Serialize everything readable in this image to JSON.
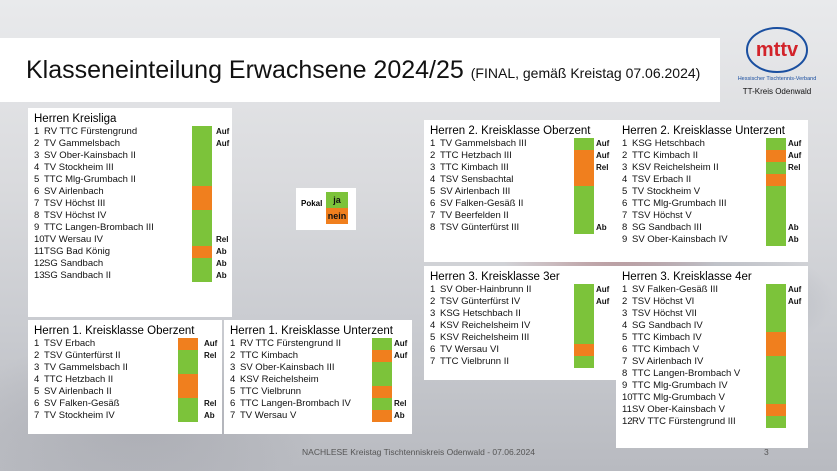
{
  "colors": {
    "green": "#7cc33a",
    "orange": "#f07f1e"
  },
  "title": {
    "main": "Klasseneinteilung Erwachsene 2024/25",
    "sub": "(FINAL, gemäß Kreistag 07.06.2024)"
  },
  "logo": {
    "mark": "mttv",
    "line1": "Hessischer Tischtennis-Verband",
    "line2": "TT-Kreis Odenwald"
  },
  "pokal": {
    "label": "Pokal",
    "ja": "ja",
    "nein": "nein"
  },
  "footer": {
    "text": "NACHLESE Kreistag Tischtenniskreis Odenwald - 07.06.2024",
    "page": "3"
  },
  "tables": [
    {
      "id": "kreisliga",
      "title": "Herren Kreisliga",
      "rows": [
        {
          "n": "1",
          "team": "RV TTC Fürstengrund",
          "color": "green",
          "tag": "Auf"
        },
        {
          "n": "2",
          "team": "TV Gammelsbach",
          "color": "green",
          "tag": "Auf"
        },
        {
          "n": "3",
          "team": "SV Ober-Kainsbach II",
          "color": "green",
          "tag": ""
        },
        {
          "n": "4",
          "team": "TV Stockheim III",
          "color": "green",
          "tag": ""
        },
        {
          "n": "5",
          "team": "TTC Mlg-Grumbach II",
          "color": "green",
          "tag": ""
        },
        {
          "n": "6",
          "team": "SV Airlenbach",
          "color": "orange",
          "tag": ""
        },
        {
          "n": "7",
          "team": "TSV Höchst III",
          "color": "orange",
          "tag": ""
        },
        {
          "n": "8",
          "team": "TSV Höchst IV",
          "color": "green",
          "tag": ""
        },
        {
          "n": "9",
          "team": "TTC Langen-Brombach III",
          "color": "green",
          "tag": ""
        },
        {
          "n": "10",
          "team": "TV Wersau IV",
          "color": "green",
          "tag": "Rel"
        },
        {
          "n": "11",
          "team": "TSG Bad König",
          "color": "orange",
          "tag": "Ab"
        },
        {
          "n": "12",
          "team": "SG Sandbach",
          "color": "green",
          "tag": "Ab"
        },
        {
          "n": "13",
          "team": "SG Sandbach II",
          "color": "green",
          "tag": "Ab"
        }
      ]
    },
    {
      "id": "1kk-oberzent",
      "title": "Herren 1. Kreisklasse Oberzent",
      "rows": [
        {
          "n": "1",
          "team": "TSV Erbach",
          "color": "orange",
          "tag": "Auf"
        },
        {
          "n": "2",
          "team": "TSV Günterfürst II",
          "color": "green",
          "tag": "Rel"
        },
        {
          "n": "3",
          "team": "TV Gammelsbach II",
          "color": "green",
          "tag": ""
        },
        {
          "n": "4",
          "team": "TTC Hetzbach II",
          "color": "orange",
          "tag": ""
        },
        {
          "n": "5",
          "team": "SV Airlenbach II",
          "color": "orange",
          "tag": ""
        },
        {
          "n": "6",
          "team": "SV Falken-Gesäß",
          "color": "green",
          "tag": "Rel"
        },
        {
          "n": "7",
          "team": "TV Stockheim IV",
          "color": "green",
          "tag": "Ab"
        }
      ]
    },
    {
      "id": "1kk-unterzent",
      "title": "Herren 1. Kreisklasse Unterzent",
      "rows": [
        {
          "n": "1",
          "team": "RV TTC Fürstengrund II",
          "color": "green",
          "tag": "Auf"
        },
        {
          "n": "2",
          "team": "TTC Kimbach",
          "color": "orange",
          "tag": "Auf"
        },
        {
          "n": "3",
          "team": "SV Ober-Kainsbach III",
          "color": "green",
          "tag": ""
        },
        {
          "n": "4",
          "team": "KSV Reichelsheim",
          "color": "green",
          "tag": ""
        },
        {
          "n": "5",
          "team": "TTC Vielbrunn",
          "color": "orange",
          "tag": ""
        },
        {
          "n": "6",
          "team": "TTC Langen-Brombach IV",
          "color": "green",
          "tag": "Rel"
        },
        {
          "n": "7",
          "team": "TV Wersau V",
          "color": "orange",
          "tag": "Ab"
        }
      ]
    },
    {
      "id": "2kk-oberzent",
      "title": "Herren 2. Kreisklasse Oberzent",
      "rows": [
        {
          "n": "1",
          "team": "TV Gammelsbach III",
          "color": "green",
          "tag": "Auf"
        },
        {
          "n": "2",
          "team": "TTC Hetzbach III",
          "color": "orange",
          "tag": "Auf"
        },
        {
          "n": "3",
          "team": "TTC Kimbach III",
          "color": "orange",
          "tag": "Rel"
        },
        {
          "n": "4",
          "team": "TSV Sensbachtal",
          "color": "orange",
          "tag": ""
        },
        {
          "n": "5",
          "team": "SV Airlenbach III",
          "color": "green",
          "tag": ""
        },
        {
          "n": "6",
          "team": "SV Falken-Gesäß II",
          "color": "green",
          "tag": ""
        },
        {
          "n": "7",
          "team": "TV Beerfelden II",
          "color": "green",
          "tag": ""
        },
        {
          "n": "8",
          "team": "TSV Günterfürst III",
          "color": "green",
          "tag": "Ab"
        }
      ]
    },
    {
      "id": "2kk-unterzent",
      "title": "Herren 2. Kreisklasse Unterzent",
      "rows": [
        {
          "n": "1",
          "team": "KSG Hetschbach",
          "color": "green",
          "tag": "Auf"
        },
        {
          "n": "2",
          "team": "TTC Kimbach II",
          "color": "orange",
          "tag": "Auf"
        },
        {
          "n": "3",
          "team": "KSV Reichelsheim II",
          "color": "green",
          "tag": "Rel"
        },
        {
          "n": "4",
          "team": "TSV Erbach II",
          "color": "orange",
          "tag": ""
        },
        {
          "n": "5",
          "team": "TV Stockheim V",
          "color": "green",
          "tag": ""
        },
        {
          "n": "6",
          "team": "TTC Mlg-Grumbach III",
          "color": "green",
          "tag": ""
        },
        {
          "n": "7",
          "team": "TSV Höchst V",
          "color": "green",
          "tag": ""
        },
        {
          "n": "8",
          "team": "SG Sandbach III",
          "color": "green",
          "tag": "Ab"
        },
        {
          "n": "9",
          "team": "SV Ober-Kainsbach IV",
          "color": "green",
          "tag": "Ab"
        }
      ]
    },
    {
      "id": "3kk-3er",
      "title": "Herren 3. Kreisklasse 3er",
      "rows": [
        {
          "n": "1",
          "team": "SV Ober-Hainbrunn II",
          "color": "green",
          "tag": "Auf"
        },
        {
          "n": "2",
          "team": "TSV Günterfürst IV",
          "color": "green",
          "tag": "Auf"
        },
        {
          "n": "3",
          "team": "KSG Hetschbach II",
          "color": "green",
          "tag": ""
        },
        {
          "n": "4",
          "team": "KSV Reichelsheim IV",
          "color": "green",
          "tag": ""
        },
        {
          "n": "5",
          "team": "KSV Reichelsheim III",
          "color": "green",
          "tag": ""
        },
        {
          "n": "6",
          "team": "TV Wersau VI",
          "color": "orange",
          "tag": ""
        },
        {
          "n": "7",
          "team": "TTC Vielbrunn II",
          "color": "green",
          "tag": ""
        }
      ]
    },
    {
      "id": "3kk-4er",
      "title": "Herren 3. Kreisklasse 4er",
      "rows": [
        {
          "n": "1",
          "team": "SV Falken-Gesäß III",
          "color": "green",
          "tag": "Auf"
        },
        {
          "n": "2",
          "team": "TSV Höchst VI",
          "color": "green",
          "tag": "Auf"
        },
        {
          "n": "3",
          "team": "TSV Höchst VII",
          "color": "green",
          "tag": ""
        },
        {
          "n": "4",
          "team": "SG Sandbach IV",
          "color": "green",
          "tag": ""
        },
        {
          "n": "5",
          "team": "TTC Kimbach IV",
          "color": "orange",
          "tag": ""
        },
        {
          "n": "6",
          "team": "TTC Kimbach V",
          "color": "orange",
          "tag": ""
        },
        {
          "n": "7",
          "team": "SV Airlenbach IV",
          "color": "green",
          "tag": ""
        },
        {
          "n": "8",
          "team": "TTC Langen-Brombach V",
          "color": "green",
          "tag": ""
        },
        {
          "n": "9",
          "team": "TTC Mlg-Grumbach IV",
          "color": "green",
          "tag": ""
        },
        {
          "n": "10",
          "team": "TTC Mlg-Grumbach V",
          "color": "green",
          "tag": ""
        },
        {
          "n": "11",
          "team": "SV Ober-Kainsbach V",
          "color": "orange",
          "tag": ""
        },
        {
          "n": "12",
          "team": "RV TTC Fürstengrund III",
          "color": "green",
          "tag": ""
        }
      ]
    }
  ]
}
